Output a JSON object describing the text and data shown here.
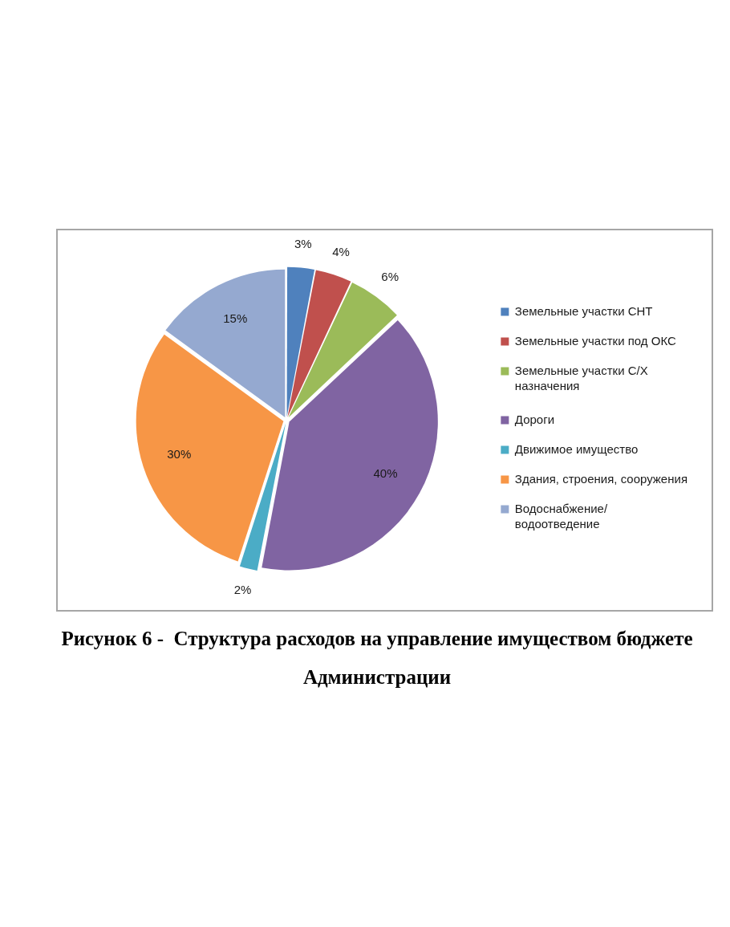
{
  "chart_data": {
    "type": "pie",
    "title": "Рисунок 6 -  Структура расходов на управление имуществом бюджете Администрации",
    "categories": [
      "Земельные участки СНТ",
      "Земельные участки под ОКС",
      "Земельные участки С/Х назначения",
      "Дороги",
      "Движимое имущество",
      "Здания, строения, сооружения",
      "Водоснабжение/ водоотведение"
    ],
    "values": [
      3,
      4,
      6,
      40,
      2,
      30,
      15
    ],
    "colors": [
      "#4f81bd",
      "#c0504d",
      "#9bbb59",
      "#8064a2",
      "#4bacc6",
      "#f79646",
      "#95a9d0"
    ],
    "value_labels": [
      "3%",
      "4%",
      "6%",
      "40%",
      "2%",
      "30%",
      "15%"
    ],
    "legend": "right"
  }
}
